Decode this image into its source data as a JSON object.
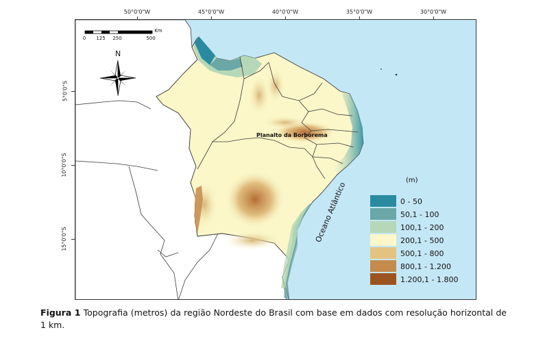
{
  "map": {
    "longitude_labels": [
      "50°0'0\"W",
      "45°0'0\"W",
      "40°0'0\"W",
      "35°0'0\"W",
      "30°0'0\"W"
    ],
    "latitude_labels": [
      "5°0'0\"S",
      "10°0'0\"S",
      "15°0'0\"S"
    ],
    "scale_bar": {
      "unit": "Km",
      "ticks": [
        "0",
        "125",
        "250",
        "500"
      ]
    },
    "north_arrow_letter": "N",
    "ocean_label": "Oceano Atlântico",
    "plateau_label": "Planalto da Borborema",
    "colors": {
      "ocean": "#c4e7f6",
      "outside_land": "#ffffff",
      "border": "#3a3a3a"
    }
  },
  "legend": {
    "title": "(m)",
    "classes": [
      {
        "label": "0 - 50",
        "color": "#2a8aa0"
      },
      {
        "label": "50,1 - 100",
        "color": "#6aa8a7"
      },
      {
        "label": "100,1 - 200",
        "color": "#b6d8b8"
      },
      {
        "label": "200,1 - 500",
        "color": "#fbf7c8"
      },
      {
        "label": "500,1 - 800",
        "color": "#e4c380"
      },
      {
        "label": "800,1 - 1.200",
        "color": "#c58b4d"
      },
      {
        "label": "1.200,1 - 1.800",
        "color": "#9b5420"
      }
    ]
  },
  "caption": {
    "prefix": "Figura 1",
    "text": " Topografia (metros) da região Nordeste do Brasil com base em dados com resolução horizontal de 1 km."
  }
}
